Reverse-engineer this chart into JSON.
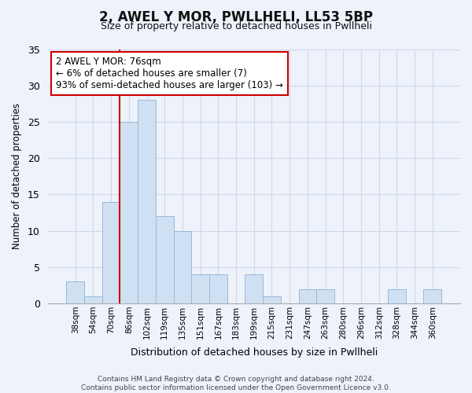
{
  "title": "2, AWEL Y MOR, PWLLHELI, LL53 5BP",
  "subtitle": "Size of property relative to detached houses in Pwllheli",
  "xlabel": "Distribution of detached houses by size in Pwllheli",
  "ylabel": "Number of detached properties",
  "footer_line1": "Contains HM Land Registry data © Crown copyright and database right 2024.",
  "footer_line2": "Contains public sector information licensed under the Open Government Licence v3.0.",
  "bin_labels": [
    "38sqm",
    "54sqm",
    "70sqm",
    "86sqm",
    "102sqm",
    "119sqm",
    "135sqm",
    "151sqm",
    "167sqm",
    "183sqm",
    "199sqm",
    "215sqm",
    "231sqm",
    "247sqm",
    "263sqm",
    "280sqm",
    "296sqm",
    "312sqm",
    "328sqm",
    "344sqm",
    "360sqm"
  ],
  "bin_values": [
    3,
    1,
    14,
    25,
    28,
    12,
    10,
    4,
    4,
    0,
    4,
    1,
    0,
    2,
    2,
    0,
    0,
    0,
    2,
    0,
    2
  ],
  "bar_color": "#cfe0f3",
  "bar_edge_color": "#9ab8d8",
  "vline_color": "#cc0000",
  "ylim": [
    0,
    35
  ],
  "yticks": [
    0,
    5,
    10,
    15,
    20,
    25,
    30,
    35
  ],
  "annotation_title": "2 AWEL Y MOR: 76sqm",
  "annotation_line1": "← 6% of detached houses are smaller (7)",
  "annotation_line2": "93% of semi-detached houses are larger (103) →",
  "annotation_box_color": "#ffffff",
  "annotation_box_edge": "#cc0000",
  "bg_color": "#edf2fb",
  "grid_color": "#d0d8e8",
  "title_fontsize": 12,
  "subtitle_fontsize": 9
}
